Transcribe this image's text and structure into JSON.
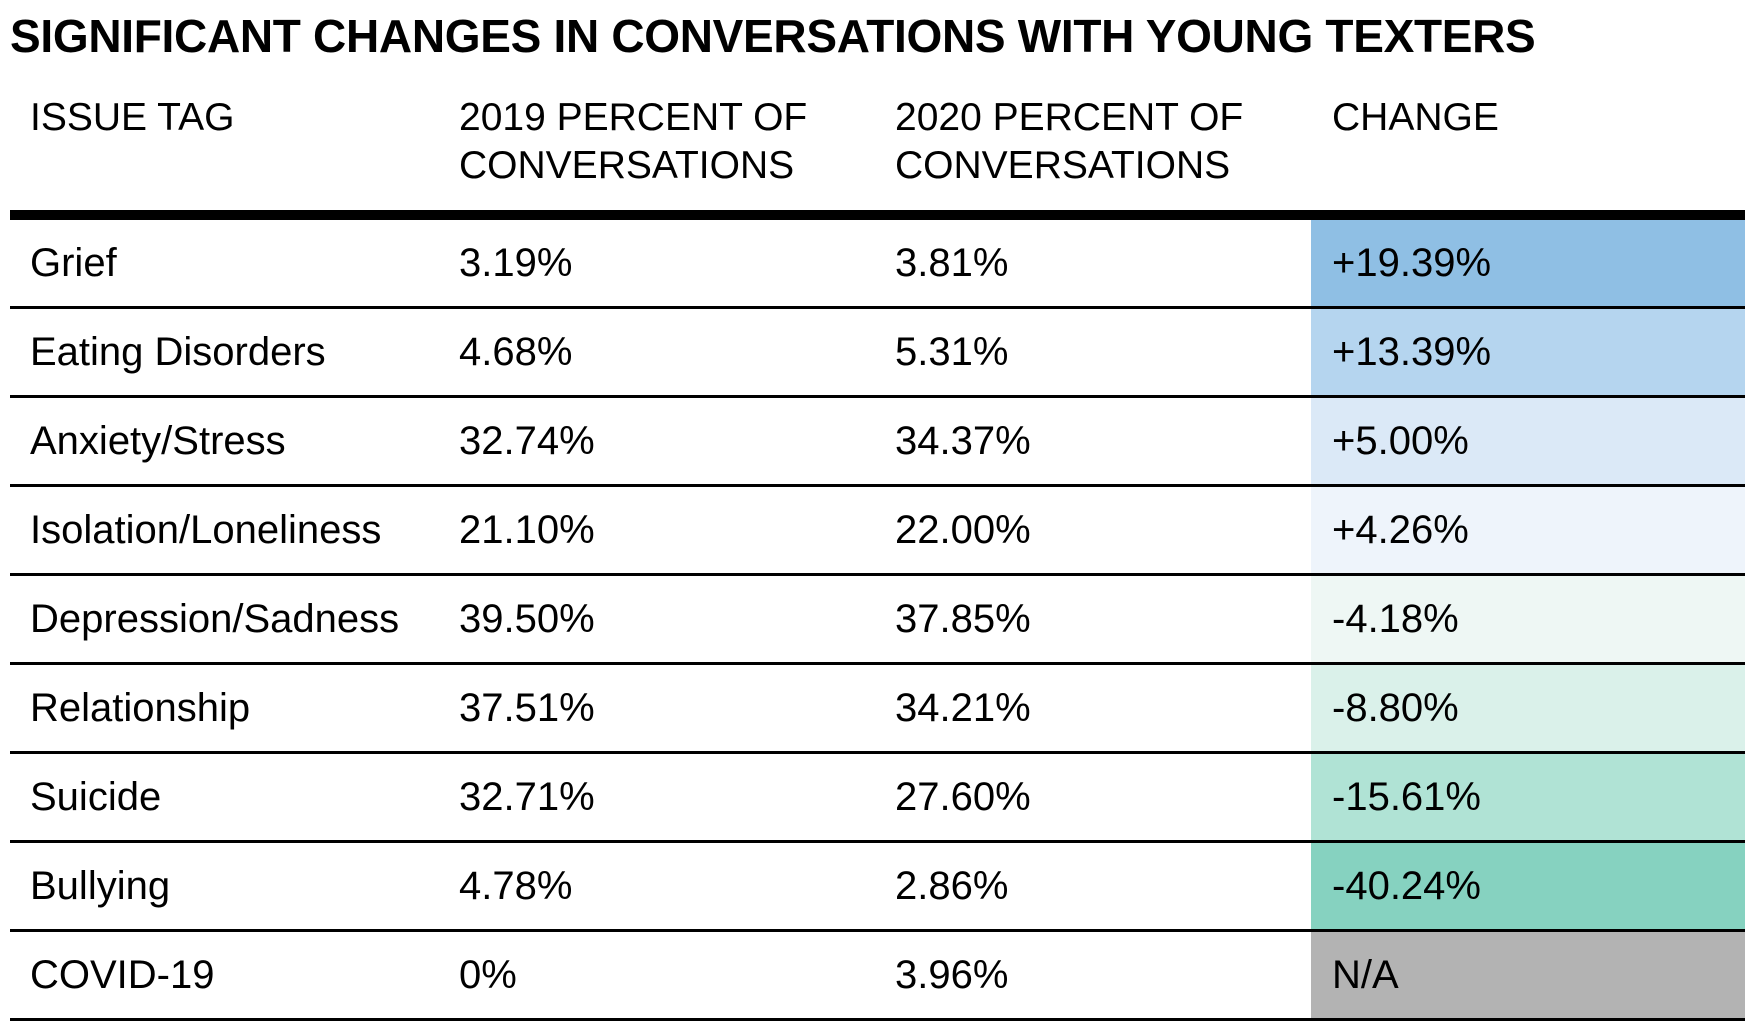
{
  "chart_data": {
    "type": "table",
    "title": "SIGNIFICANT CHANGES IN CONVERSATIONS WITH YOUNG TEXTERS",
    "columns": [
      "ISSUE TAG",
      "2019 PERCENT OF\nCONVERSATIONS",
      "2020 PERCENT OF\nCONVERSATIONS",
      "CHANGE"
    ],
    "rows": [
      {
        "tag": "Grief",
        "y2019": "3.19%",
        "y2020": "3.81%",
        "change": "+19.39%",
        "color": "#8fbfe4"
      },
      {
        "tag": "Eating Disorders",
        "y2019": "4.68%",
        "y2020": "5.31%",
        "change": "+13.39%",
        "color": "#b5d5ef"
      },
      {
        "tag": "Anxiety/Stress",
        "y2019": "32.74%",
        "y2020": "34.37%",
        "change": "+5.00%",
        "color": "#dbe9f7"
      },
      {
        "tag": "Isolation/Loneliness",
        "y2019": "21.10%",
        "y2020": "22.00%",
        "change": "+4.26%",
        "color": "#eef4fb"
      },
      {
        "tag": "Depression/Sadness",
        "y2019": "39.50%",
        "y2020": "37.85%",
        "change": "-4.18%",
        "color": "#eef7f4"
      },
      {
        "tag": "Relationship",
        "y2019": "37.51%",
        "y2020": "34.21%",
        "change": "-8.80%",
        "color": "#daf1ea"
      },
      {
        "tag": "Suicide",
        "y2019": "32.71%",
        "y2020": "27.60%",
        "change": "-15.61%",
        "color": "#b0e3d5"
      },
      {
        "tag": "Bullying",
        "y2019": "4.78%",
        "y2020": "2.86%",
        "change": "-40.24%",
        "color": "#86d2c0"
      },
      {
        "tag": "COVID-19",
        "y2019": "0%",
        "y2020": "3.96%",
        "change": "N/A",
        "color": "#b3b3b3"
      }
    ]
  }
}
